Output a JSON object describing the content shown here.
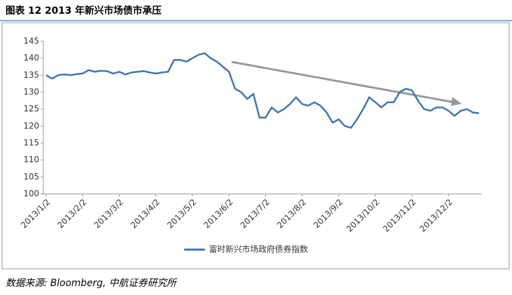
{
  "chart_data": {
    "type": "line",
    "title": "图表 12 2013 年新兴市场债市承压",
    "source": "数据来源: Bloomberg, 中航证券研究所",
    "categories": [
      "2013/1/2",
      null,
      null,
      null,
      null,
      null,
      "2013/2/2",
      null,
      null,
      null,
      null,
      null,
      "2013/3/2",
      null,
      null,
      null,
      null,
      null,
      "2013/4/2",
      null,
      null,
      null,
      null,
      null,
      "2013/5/2",
      null,
      null,
      null,
      null,
      null,
      "2013/6/2",
      null,
      null,
      null,
      null,
      null,
      "2013/7/2",
      null,
      null,
      null,
      null,
      null,
      "2013/8/2",
      null,
      null,
      null,
      null,
      null,
      "2013/9/2",
      null,
      null,
      null,
      null,
      null,
      "2013/10/2",
      null,
      null,
      null,
      null,
      null,
      "2013/11/2",
      null,
      null,
      null,
      null,
      null,
      "2013/12/2",
      null,
      null,
      null,
      null,
      null
    ],
    "series": [
      {
        "name": "富时新兴市场政府债券指数",
        "color": "#3f74b3",
        "values": [
          135,
          134,
          135,
          135.2,
          135,
          135.3,
          135.5,
          136.5,
          136,
          136.3,
          136.2,
          135.5,
          136,
          135.2,
          135.8,
          136,
          136.2,
          135.8,
          135.5,
          135.8,
          136,
          139.5,
          139.5,
          139,
          140,
          141,
          141.5,
          140,
          139,
          137.5,
          136,
          131,
          130,
          128,
          129.5,
          122.5,
          122.5,
          125.5,
          124,
          125,
          126.5,
          128.5,
          126.5,
          126,
          127,
          126,
          124,
          121,
          122,
          120,
          119.5,
          122,
          125,
          128.5,
          127,
          125.5,
          127,
          127,
          130,
          131,
          130.5,
          127.5,
          125,
          124.5,
          125.5,
          125.5,
          124.5,
          123,
          124.5,
          125,
          124,
          123.8
        ]
      }
    ],
    "ylim": [
      100,
      145
    ],
    "yticks": [
      100,
      105,
      110,
      115,
      120,
      125,
      130,
      135,
      140,
      145
    ],
    "grid": false,
    "legend": "bottom"
  }
}
